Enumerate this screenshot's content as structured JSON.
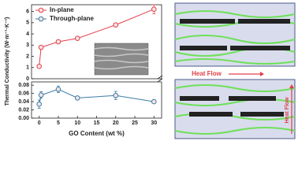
{
  "chart_data": [
    {
      "type": "line",
      "legend": "upper left",
      "x": [
        0,
        0.5,
        5,
        10,
        20,
        30
      ],
      "series": [
        {
          "name": "In-plane",
          "color": "#e0404a",
          "values": [
            1.1,
            2.8,
            3.3,
            3.6,
            4.8,
            6.2
          ],
          "errors": [
            0.1,
            0.1,
            0.15,
            0.1,
            0.1,
            0.4
          ]
        }
      ],
      "xlim": [
        -2,
        32
      ],
      "ylim": [
        0,
        6.6
      ],
      "yticks": [
        0,
        1,
        2,
        3,
        4,
        5,
        6
      ],
      "ylabel": "Thermal Conductivity (W·m⁻¹·K⁻¹)"
    },
    {
      "type": "line",
      "legend": "upper left",
      "x": [
        0,
        0.5,
        5,
        10,
        20,
        30
      ],
      "series": [
        {
          "name": "Through-plane",
          "color": "#3a7ca5",
          "values": [
            0.034,
            0.056,
            0.07,
            0.049,
            0.055,
            0.04
          ],
          "errors": [
            0.01,
            0.008,
            0.008,
            0.003,
            0.01,
            0.003
          ]
        }
      ],
      "xlim": [
        -2,
        32
      ],
      "xticks": [
        0,
        5,
        10,
        15,
        20,
        25,
        30
      ],
      "ylim": [
        0,
        0.088
      ],
      "yticks": [
        {
          "value": 0,
          "label": "0.00"
        },
        0.02,
        0.04,
        0.06,
        0.08
      ],
      "xlabel": "GO Content (wt %)"
    }
  ],
  "diagram": {
    "labels": [
      "Heat Flow",
      "Heat Flow"
    ]
  }
}
